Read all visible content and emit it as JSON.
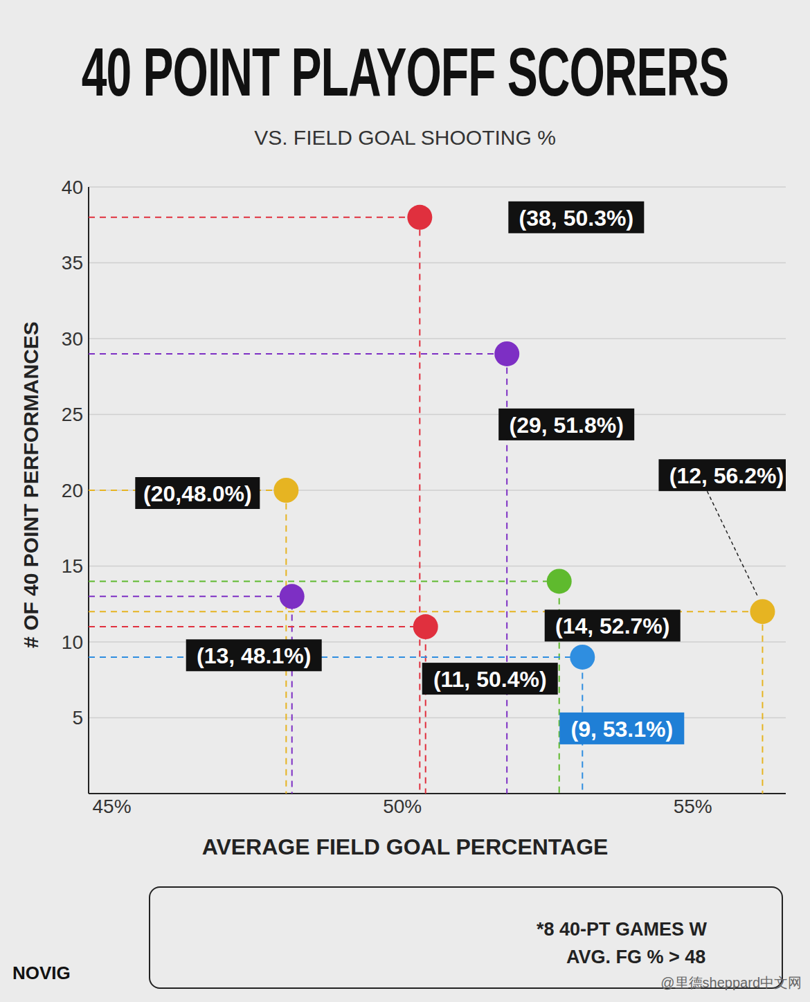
{
  "chart_data": {
    "type": "scatter",
    "title": "40 POINT PLAYOFF SCORERS",
    "subtitle": "VS. FIELD GOAL SHOOTING %",
    "x_label": "AVERAGE FIELD GOAL PERCENTAGE",
    "y_label": "# OF 40 POINT PERFORMANCES",
    "x": [
      50.3,
      51.8,
      48.0,
      48.1,
      50.4,
      52.7,
      56.2,
      53.1
    ],
    "values": [
      38,
      29,
      20,
      13,
      11,
      14,
      12,
      9
    ],
    "value_labels": [
      "(38, 50.3%)",
      "(29, 51.8%)",
      "(20,48.0%)",
      "(13, 48.1%)",
      "(11, 50.4%)",
      "(14, 52.7%)",
      "(12, 56.2%)",
      "(9, 53.1%)"
    ],
    "colors": [
      "#e0303e",
      "#7d2fc4",
      "#e6b422",
      "#7d2fc4",
      "#e0303e",
      "#5fba2e",
      "#e6b422",
      "#2f8ee0"
    ],
    "xlim": [
      44.6,
      56.6
    ],
    "xticks": [
      {
        "value": 45,
        "label": "45%"
      },
      {
        "value": 50,
        "label": "50%"
      },
      {
        "value": 55,
        "label": "55%"
      }
    ],
    "ylim": [
      0,
      40
    ],
    "yticks": [
      5,
      10,
      15,
      20,
      25,
      30,
      35,
      40
    ],
    "grid": true,
    "data_labels": true,
    "marker": "circle",
    "line_style": "dashed",
    "annotations": {
      "footnote": [
        "*8 40-PT GAMES W",
        "AVG. FG % > 48"
      ],
      "brand": "NOVIG",
      "watermark": "@里德sheppard中文网"
    }
  }
}
